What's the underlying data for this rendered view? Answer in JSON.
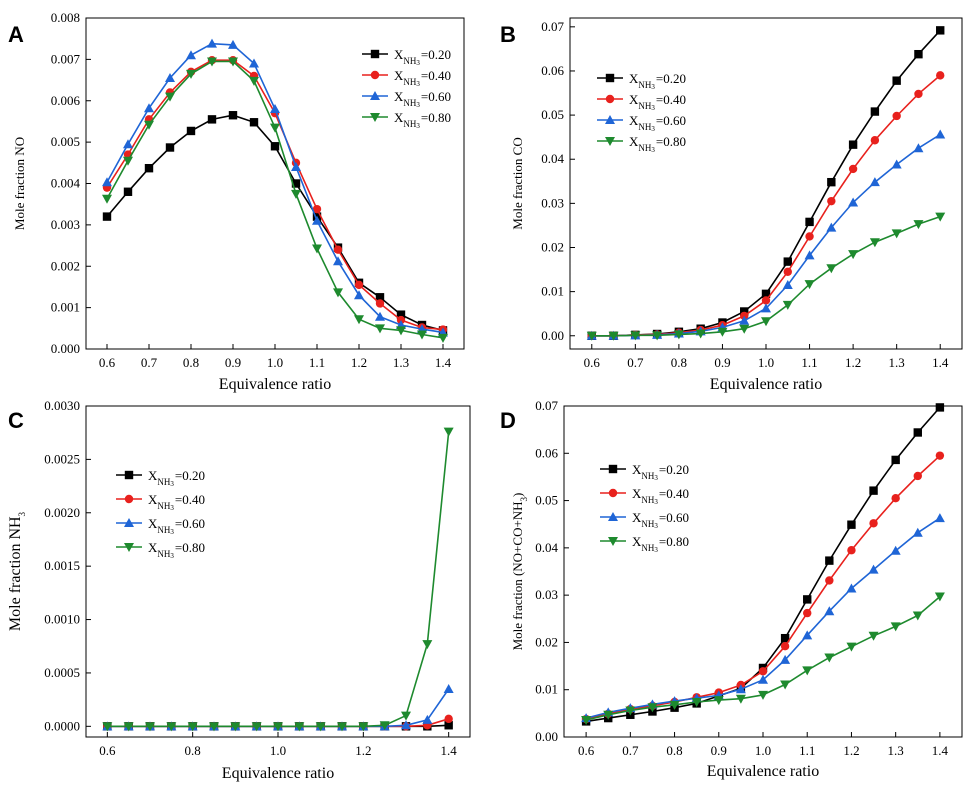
{
  "chart_data": [
    {
      "panel": "A",
      "type": "line",
      "xlabel": "Equivalence ratio",
      "ylabel": "Mole fraction NO",
      "xlim": [
        0.55,
        1.45
      ],
      "ylim": [
        0,
        0.008
      ],
      "xticks": [
        "0.6",
        "0.7",
        "0.8",
        "0.9",
        "1.0",
        "1.1",
        "1.2",
        "1.3",
        "1.4"
      ],
      "yticks": [
        "0.000",
        "0.001",
        "0.002",
        "0.003",
        "0.004",
        "0.005",
        "0.006",
        "0.007",
        "0.008"
      ],
      "legend_position": "top-right",
      "x": [
        0.6,
        0.65,
        0.7,
        0.75,
        0.8,
        0.85,
        0.9,
        0.95,
        1.0,
        1.05,
        1.1,
        1.15,
        1.2,
        1.25,
        1.3,
        1.35,
        1.4
      ],
      "series": [
        {
          "name": "0.20",
          "values": [
            0.0032,
            0.0038,
            0.00437,
            0.00487,
            0.00527,
            0.00555,
            0.00565,
            0.00548,
            0.0049,
            0.004,
            0.0032,
            0.00245,
            0.0016,
            0.00125,
            0.00083,
            0.00058,
            0.00045
          ]
        },
        {
          "name": "0.40",
          "values": [
            0.0039,
            0.0047,
            0.00555,
            0.0062,
            0.0067,
            0.00698,
            0.00698,
            0.0066,
            0.0057,
            0.0045,
            0.00338,
            0.0024,
            0.00155,
            0.0011,
            0.0007,
            0.00052,
            0.00047
          ]
        },
        {
          "name": "0.60",
          "values": [
            0.00403,
            0.00495,
            0.00582,
            0.00655,
            0.0071,
            0.00738,
            0.00735,
            0.0069,
            0.0058,
            0.0044,
            0.0031,
            0.00212,
            0.0013,
            0.00078,
            0.00058,
            0.00048,
            0.0004
          ]
        },
        {
          "name": "0.80",
          "values": [
            0.00363,
            0.00455,
            0.00542,
            0.0061,
            0.00665,
            0.00695,
            0.00695,
            0.00648,
            0.00535,
            0.00375,
            0.00243,
            0.00137,
            0.00072,
            0.0005,
            0.00045,
            0.00035,
            0.00027
          ]
        }
      ]
    },
    {
      "panel": "B",
      "type": "line",
      "xlabel": "Equivalence ratio",
      "ylabel": "Mole fraction CO",
      "xlim": [
        0.55,
        1.45
      ],
      "ylim": [
        -0.003,
        0.072
      ],
      "xticks": [
        "0.6",
        "0.7",
        "0.8",
        "0.9",
        "1.0",
        "1.1",
        "1.2",
        "1.3",
        "1.4"
      ],
      "yticks": [
        "0.00",
        "0.01",
        "0.02",
        "0.03",
        "0.04",
        "0.05",
        "0.06",
        "0.07"
      ],
      "legend_position": "top-left",
      "x": [
        0.6,
        0.65,
        0.7,
        0.75,
        0.8,
        0.85,
        0.9,
        0.95,
        1.0,
        1.05,
        1.1,
        1.15,
        1.2,
        1.25,
        1.3,
        1.35,
        1.4
      ],
      "series": [
        {
          "name": "0.20",
          "values": [
            0,
            0,
            0.0002,
            0.0004,
            0.0009,
            0.0016,
            0.003,
            0.0055,
            0.0095,
            0.0168,
            0.0258,
            0.0348,
            0.0433,
            0.0508,
            0.0578,
            0.0638,
            0.0692
          ]
        },
        {
          "name": "0.40",
          "values": [
            0,
            0,
            0.0002,
            0.0003,
            0.0007,
            0.0013,
            0.0024,
            0.0045,
            0.008,
            0.0145,
            0.0225,
            0.0305,
            0.0378,
            0.0443,
            0.0498,
            0.0548,
            0.059
          ]
        },
        {
          "name": "0.60",
          "values": [
            0,
            0,
            0.0001,
            0.0002,
            0.0005,
            0.001,
            0.0019,
            0.0034,
            0.0062,
            0.0115,
            0.0182,
            0.0245,
            0.0302,
            0.0348,
            0.0388,
            0.0425,
            0.0456
          ]
        },
        {
          "name": "0.80",
          "values": [
            0,
            0,
            0.0001,
            0.0001,
            0.0003,
            0.0005,
            0.0009,
            0.0016,
            0.0033,
            0.007,
            0.0117,
            0.0153,
            0.0185,
            0.0212,
            0.0232,
            0.0253,
            0.027
          ]
        }
      ]
    },
    {
      "panel": "C",
      "type": "line",
      "xlabel": "Equivalence ratio",
      "ylabel": "Mole fraction NH",
      "ylabel_sub": "3",
      "xlim": [
        0.55,
        1.45
      ],
      "ylim": [
        -0.0001,
        0.003
      ],
      "xticks": [
        "0.6",
        "0.8",
        "1.0",
        "1.2",
        "1.4"
      ],
      "yticks": [
        "0.0000",
        "0.0005",
        "0.0010",
        "0.0015",
        "0.0020",
        "0.0025",
        "0.0030"
      ],
      "legend_position": "top-left",
      "x": [
        0.6,
        0.65,
        0.7,
        0.75,
        0.8,
        0.85,
        0.9,
        0.95,
        1.0,
        1.05,
        1.1,
        1.15,
        1.2,
        1.25,
        1.3,
        1.35,
        1.4
      ],
      "series": [
        {
          "name": "0.20",
          "values": [
            0,
            0,
            0,
            0,
            0,
            0,
            0,
            0,
            0,
            0,
            0,
            0,
            0,
            0,
            0,
            0,
            1e-05
          ]
        },
        {
          "name": "0.40",
          "values": [
            0,
            0,
            0,
            0,
            0,
            0,
            0,
            0,
            0,
            0,
            0,
            0,
            0,
            0,
            0,
            1e-05,
            7e-05
          ]
        },
        {
          "name": "0.60",
          "values": [
            0,
            0,
            0,
            0,
            0,
            0,
            0,
            0,
            0,
            0,
            0,
            0,
            0,
            0,
            1e-05,
            6e-05,
            0.00035
          ]
        },
        {
          "name": "0.80",
          "values": [
            0,
            0,
            0,
            0,
            0,
            0,
            0,
            0,
            0,
            0,
            0,
            0,
            0,
            1e-05,
            0.0001,
            0.00077,
            0.00276
          ]
        }
      ]
    },
    {
      "panel": "D",
      "type": "line",
      "xlabel": "Equivalence ratio",
      "ylabel": "Mole fraction (NO+CO+NH",
      "ylabel_sub": "3",
      "ylabel_end": ")",
      "xlim": [
        0.55,
        1.45
      ],
      "ylim": [
        0,
        0.07
      ],
      "xticks": [
        "0.6",
        "0.7",
        "0.8",
        "0.9",
        "1.0",
        "1.1",
        "1.2",
        "1.3",
        "1.4"
      ],
      "yticks": [
        "0.00",
        "0.01",
        "0.02",
        "0.03",
        "0.04",
        "0.05",
        "0.06",
        "0.07"
      ],
      "legend_position": "top-left",
      "x": [
        0.6,
        0.65,
        0.7,
        0.75,
        0.8,
        0.85,
        0.9,
        0.95,
        1.0,
        1.05,
        1.1,
        1.15,
        1.2,
        1.25,
        1.3,
        1.35,
        1.4
      ],
      "series": [
        {
          "name": "0.20",
          "values": [
            0.0033,
            0.004,
            0.0047,
            0.0054,
            0.0062,
            0.0071,
            0.0087,
            0.0103,
            0.0146,
            0.0209,
            0.0291,
            0.0373,
            0.0449,
            0.0521,
            0.0586,
            0.0644,
            0.0697
          ]
        },
        {
          "name": "0.40",
          "values": [
            0.0038,
            0.0049,
            0.0059,
            0.0066,
            0.0074,
            0.0084,
            0.0094,
            0.011,
            0.0139,
            0.0192,
            0.0262,
            0.0331,
            0.0395,
            0.0452,
            0.0505,
            0.0552,
            0.0595
          ]
        },
        {
          "name": "0.60",
          "values": [
            0.004,
            0.0052,
            0.0061,
            0.0069,
            0.0076,
            0.0082,
            0.0088,
            0.0101,
            0.0121,
            0.0163,
            0.0215,
            0.0266,
            0.0314,
            0.0354,
            0.0394,
            0.0432,
            0.0463
          ]
        },
        {
          "name": "0.80",
          "values": [
            0.0036,
            0.0047,
            0.0056,
            0.0063,
            0.0068,
            0.0074,
            0.0078,
            0.0081,
            0.0089,
            0.0111,
            0.0141,
            0.0168,
            0.0191,
            0.0214,
            0.0234,
            0.0257,
            0.0297
          ]
        }
      ]
    }
  ],
  "legend": {
    "prefix": "X",
    "sub": "NH",
    "subsub": "3",
    "eq": "="
  },
  "series_colors": [
    "#000000",
    "#e8211d",
    "#1f65d6",
    "#1e8a2e"
  ],
  "series_markers": [
    "square",
    "circle",
    "triangle-up",
    "triangle-down"
  ]
}
